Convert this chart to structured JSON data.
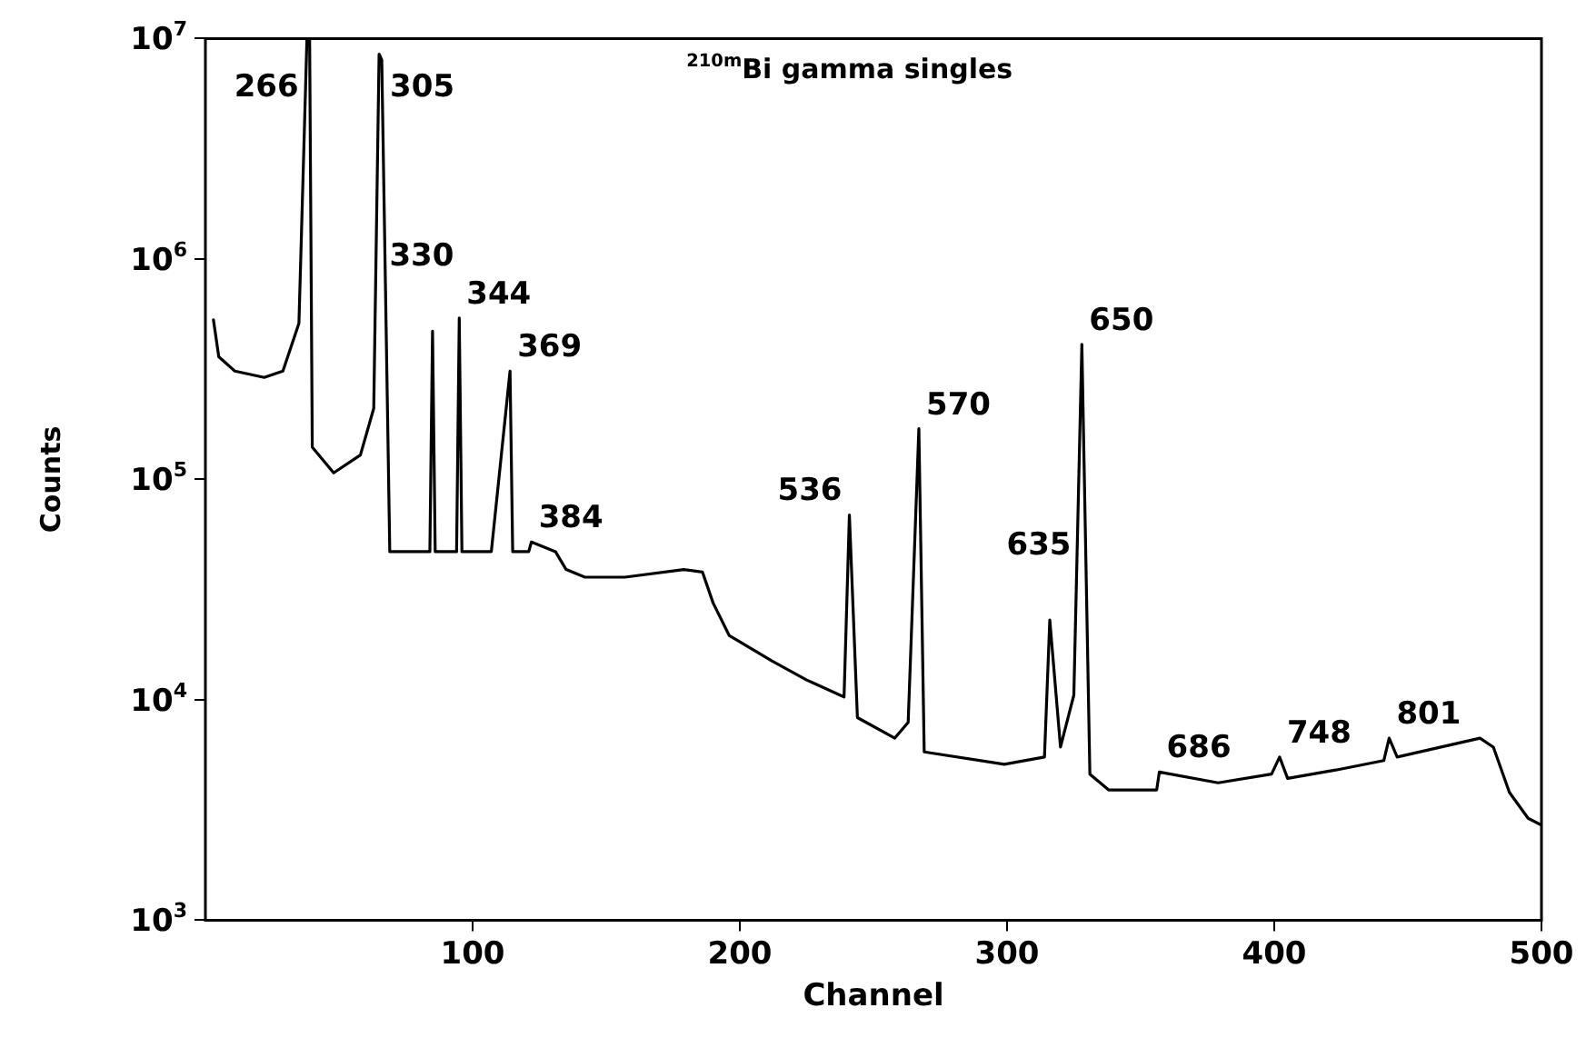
{
  "chart_data": {
    "type": "line",
    "title": "$^{210m}$Bi gamma singles",
    "xlabel": "Channel",
    "ylabel": "Counts",
    "log": "y",
    "grid": false,
    "legend": false,
    "marker": "none",
    "line_style": "solid",
    "xlim": [
      0,
      500
    ],
    "xticks": [
      100,
      200,
      300,
      400,
      500
    ],
    "ylim": [
      1000,
      10000000
    ],
    "yticks": [
      {
        "value": 1000,
        "label": "10$^{3}$"
      },
      {
        "value": 10000,
        "label": "10$^{4}$"
      },
      {
        "value": 100000,
        "label": "10$^{5}$"
      },
      {
        "value": 1000000,
        "label": "10$^{6}$"
      },
      {
        "value": 10000000,
        "label": "10$^{7}$"
      }
    ],
    "series": [
      {
        "color": "#000000",
        "x": [
          3,
          5,
          11,
          22,
          29,
          35,
          38,
          39,
          40,
          48,
          58,
          63,
          65,
          66,
          69,
          84,
          85,
          86,
          94,
          95,
          96,
          107,
          114,
          115,
          121,
          122,
          131,
          135,
          142,
          157,
          179,
          186,
          190,
          196,
          212,
          225,
          227,
          239,
          241,
          244,
          258,
          263,
          267,
          269,
          299,
          314,
          316,
          320,
          325,
          328,
          331,
          338,
          356,
          357,
          379,
          399,
          402,
          405,
          423,
          441,
          443,
          446,
          477,
          482,
          488,
          495,
          500
        ],
        "values": [
          530000,
          360000,
          310000,
          290000,
          310000,
          510000,
          10000000,
          10000000,
          140000,
          107000,
          129000,
          210000,
          8500000,
          8000000,
          47000,
          47000,
          470000,
          47000,
          47000,
          540000,
          47000,
          47000,
          310000,
          47000,
          47000,
          52000,
          47000,
          39000,
          36000,
          36000,
          39000,
          38000,
          27500,
          19600,
          15000,
          12300,
          12000,
          10300,
          69000,
          8300,
          6700,
          7900,
          170000,
          5800,
          5100,
          5500,
          23000,
          6100,
          10500,
          410000,
          4600,
          3900,
          3900,
          4700,
          4200,
          4600,
          5500,
          4400,
          4800,
          5300,
          6700,
          5500,
          6700,
          6100,
          3800,
          2900,
          2700
        ]
      }
    ],
    "annotations": [
      {
        "text": "266",
        "x": 39,
        "y": 10000000
      },
      {
        "text": "305",
        "x": 65,
        "y": 8500000
      },
      {
        "text": "330",
        "x": 85,
        "y": 470000
      },
      {
        "text": "344",
        "x": 95,
        "y": 540000
      },
      {
        "text": "369",
        "x": 114,
        "y": 310000
      },
      {
        "text": "384",
        "x": 122,
        "y": 52000
      },
      {
        "text": "536",
        "x": 241,
        "y": 69000
      },
      {
        "text": "570",
        "x": 267,
        "y": 170000
      },
      {
        "text": "635",
        "x": 316,
        "y": 23000
      },
      {
        "text": "650",
        "x": 328,
        "y": 410000
      },
      {
        "text": "686",
        "x": 357,
        "y": 4700
      },
      {
        "text": "748",
        "x": 402,
        "y": 5500
      },
      {
        "text": "801",
        "x": 443,
        "y": 6700
      }
    ]
  }
}
